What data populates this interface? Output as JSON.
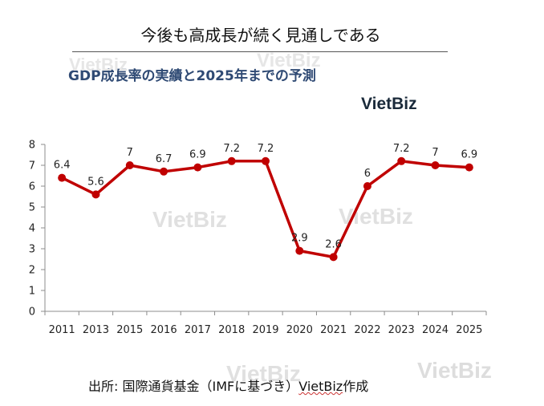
{
  "header": {
    "title": "今後も高成長が続く見通しである"
  },
  "logos": {
    "brand": "VietBiz",
    "watermark": "VietBiz"
  },
  "source": {
    "prefix": "出所: 国際通貨基金（IMFに基づき）",
    "brand": "VietBiz",
    "suffix": "作成"
  },
  "colors": {
    "line": "#c00000",
    "subtitle": "#2f4a74"
  },
  "chart_data": {
    "type": "line",
    "title": "GDP成長率の実績と2025年までの予測",
    "categories": [
      "2011",
      "2013",
      "2015",
      "2016",
      "2017",
      "2018",
      "2019",
      "2020",
      "2021",
      "2022",
      "2023",
      "2024",
      "2025"
    ],
    "values": [
      6.4,
      5.6,
      7,
      6.7,
      6.9,
      7.2,
      7.2,
      2.9,
      2.6,
      6,
      7.2,
      7,
      6.9
    ],
    "data_labels": [
      "6.4",
      "5.6",
      "7",
      "6.7",
      "6.9",
      "7.2",
      "7.2",
      "2.9",
      "2.6",
      "6",
      "7.2",
      "7",
      "6.9"
    ],
    "y_ticks": [
      "0",
      "1",
      "2",
      "3",
      "4",
      "5",
      "6",
      "7",
      "8"
    ],
    "ylim": [
      0,
      8
    ],
    "grid": false,
    "legend": "none"
  }
}
